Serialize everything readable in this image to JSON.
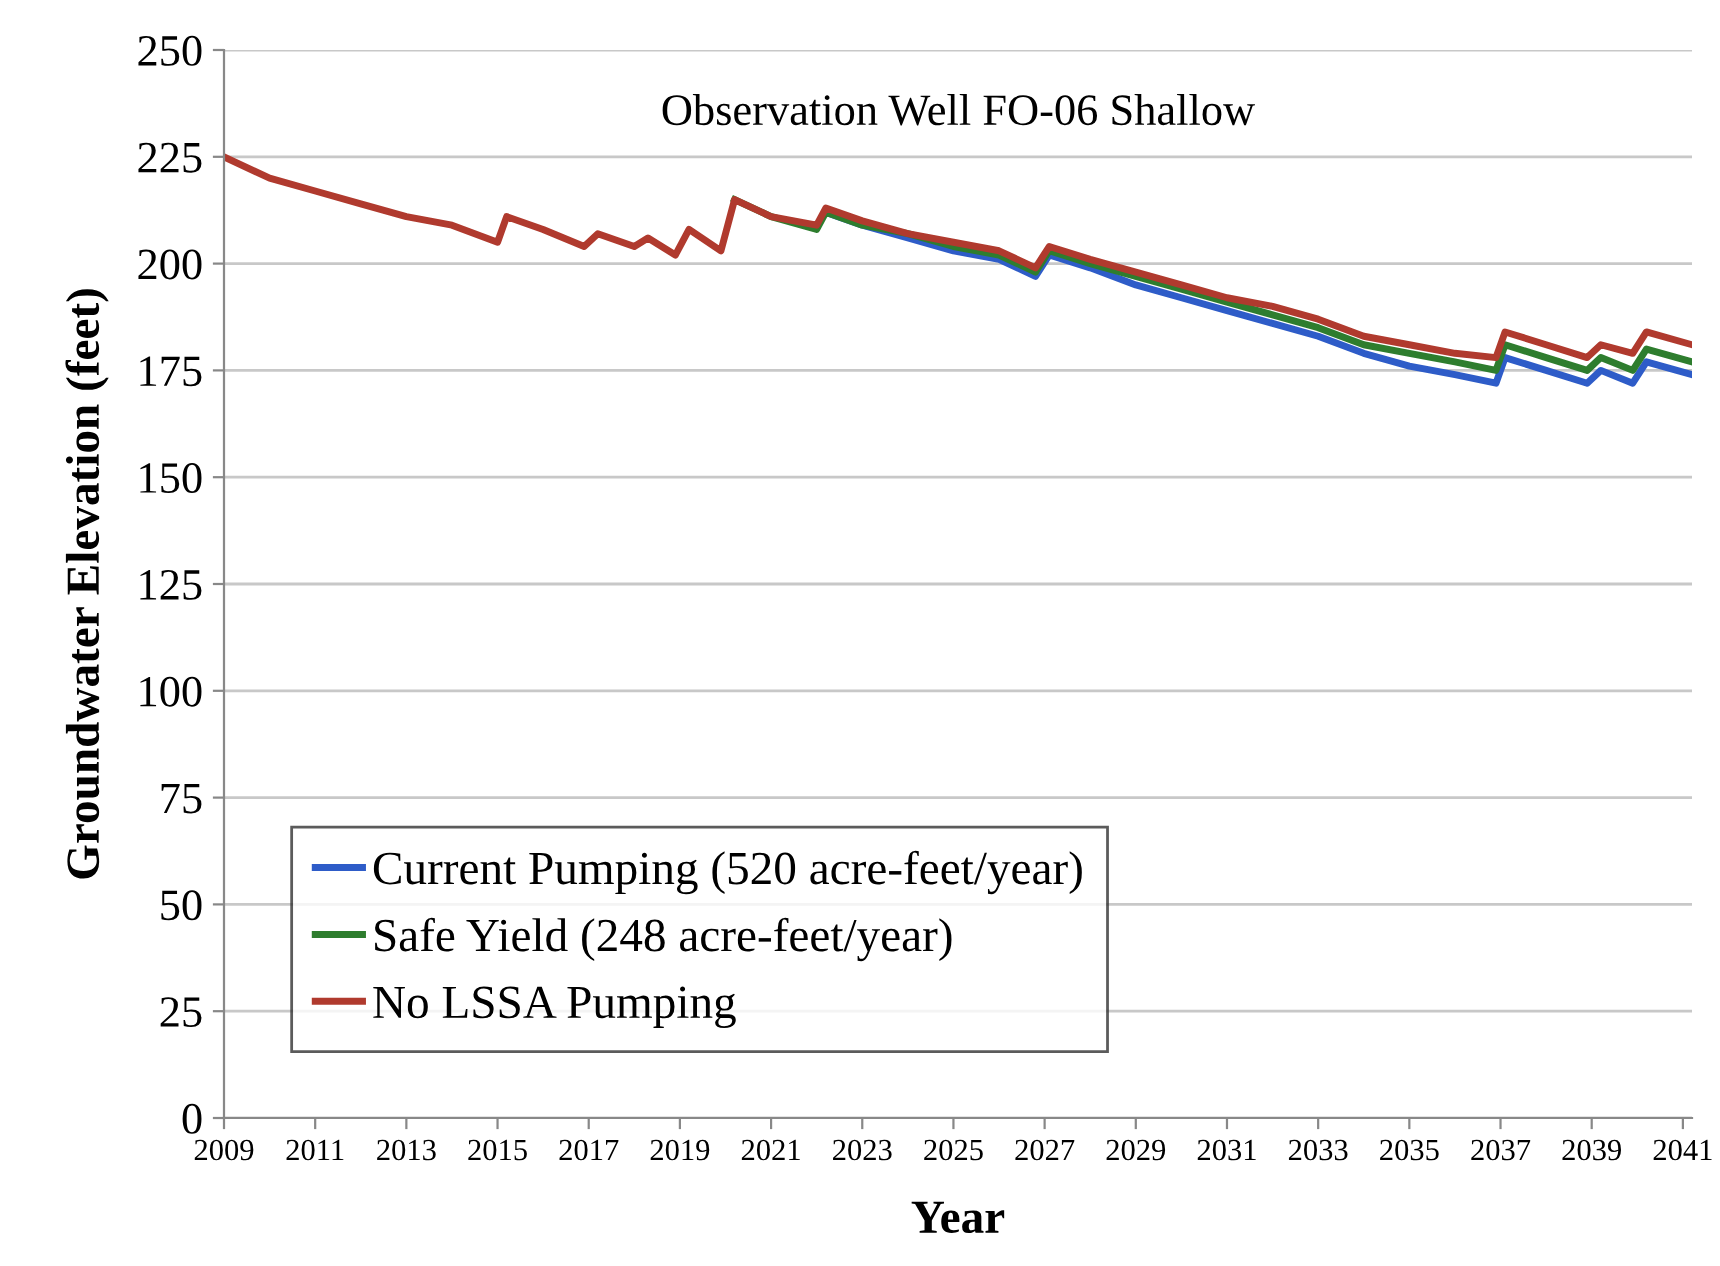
{
  "chart_data": {
    "type": "line",
    "title": "Observation Well FO-06 Shallow",
    "xlabel": "Year",
    "ylabel": "Groundwater Elevation (feet)",
    "xlim": [
      2009,
      2041.2
    ],
    "xticks": [
      2009,
      2011,
      2013,
      2015,
      2017,
      2019,
      2021,
      2023,
      2025,
      2027,
      2029,
      2031,
      2033,
      2035,
      2037,
      2039,
      2041
    ],
    "ylim": [
      0,
      250
    ],
    "yticks": [
      0,
      25,
      50,
      75,
      100,
      125,
      150,
      175,
      200,
      225,
      250
    ],
    "grid": "y",
    "legend": "bottom left",
    "marker": "none",
    "line_style": "solid",
    "x": [
      2009.0,
      2010.0,
      2011.0,
      2012.0,
      2013.0,
      2014.0,
      2015.0,
      2015.2,
      2016.0,
      2016.9,
      2017.2,
      2018.0,
      2018.3,
      2018.9,
      2019.2,
      2019.9,
      2020.2,
      2021.0,
      2022.0,
      2022.2,
      2023.0,
      2024.0,
      2025.0,
      2026.0,
      2026.8,
      2027.1,
      2028.0,
      2029.0,
      2030.0,
      2031.0,
      2032.0,
      2033.0,
      2034.0,
      2035.0,
      2036.0,
      2036.9,
      2037.1,
      2038.0,
      2038.9,
      2039.2,
      2039.9,
      2040.2,
      2041.2
    ],
    "series": [
      {
        "name": "Current Pumping (520 acre-feet/year)",
        "color": "#2e5cc8",
        "values": [
          null,
          null,
          null,
          null,
          null,
          null,
          null,
          null,
          null,
          null,
          null,
          null,
          null,
          null,
          null,
          null,
          null,
          null,
          null,
          212,
          209,
          206,
          203,
          201,
          197,
          202,
          199,
          195,
          192,
          189,
          186,
          183,
          179,
          176,
          174,
          172,
          178,
          175,
          172,
          175,
          172,
          177,
          174
        ]
      },
      {
        "name": "Safe Yield (248 acre-feet/year)",
        "color": "#2e7d2e",
        "values": [
          null,
          null,
          null,
          null,
          null,
          null,
          null,
          null,
          null,
          null,
          null,
          null,
          null,
          null,
          null,
          null,
          215,
          211,
          208,
          212,
          209,
          207,
          204,
          202,
          198,
          203,
          200,
          197,
          194,
          191,
          188,
          185,
          181,
          179,
          177,
          175,
          181,
          178,
          175,
          178,
          175,
          180,
          177
        ]
      },
      {
        "name": "No LSSA Pumping",
        "color": "#b03a2e",
        "values": [
          225,
          220,
          217,
          214,
          211,
          209,
          205,
          211,
          208,
          204,
          207,
          204,
          206,
          202,
          208,
          203,
          215,
          211,
          209,
          213,
          210,
          207,
          205,
          203,
          199,
          204,
          201,
          198,
          195,
          192,
          190,
          187,
          183,
          181,
          179,
          178,
          184,
          181,
          178,
          181,
          179,
          184,
          181
        ]
      }
    ]
  }
}
